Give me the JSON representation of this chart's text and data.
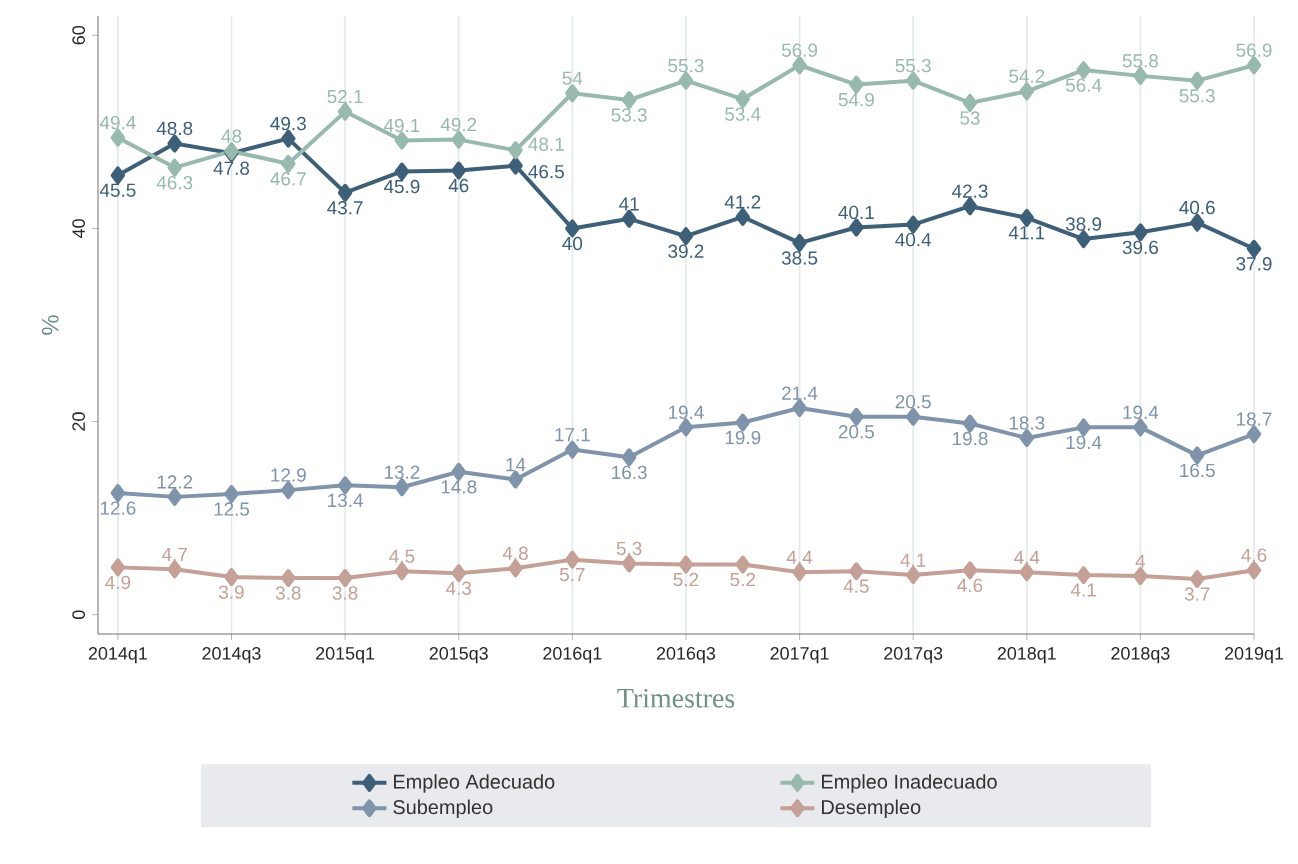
{
  "chart_data": {
    "type": "line",
    "xlabel": "Trimestres",
    "ylabel": "%",
    "categories": [
      "2014q1",
      null,
      "2014q3",
      null,
      "2015q1",
      null,
      "2015q3",
      null,
      "2016q1",
      null,
      "2016q3",
      null,
      "2017q1",
      null,
      "2017q3",
      null,
      "2018q1",
      null,
      "2018q3",
      null,
      "2019q1"
    ],
    "series": [
      {
        "name": "Empleo Adecuado",
        "color": "#3d5f78",
        "values": [
          45.5,
          48.8,
          47.8,
          49.3,
          43.7,
          45.9,
          46,
          46.5,
          40,
          41,
          39.2,
          41.2,
          38.5,
          40.1,
          40.4,
          42.3,
          41.1,
          38.9,
          39.6,
          40.6,
          37.9
        ]
      },
      {
        "name": "Empleo Inadecuado",
        "color": "#98b9ad",
        "values": [
          49.4,
          46.3,
          48,
          46.7,
          52.1,
          49.1,
          49.2,
          48.1,
          54,
          53.3,
          55.3,
          53.4,
          56.9,
          54.9,
          55.3,
          53,
          54.2,
          56.4,
          55.8,
          55.3,
          56.9
        ]
      },
      {
        "name": "Subempleo",
        "color": "#7f93aa",
        "values": [
          12.6,
          12.2,
          12.5,
          12.9,
          13.4,
          13.2,
          14.8,
          14,
          17.1,
          16.3,
          19.4,
          19.9,
          21.4,
          20.5,
          20.5,
          19.8,
          18.3,
          19.4,
          19.4,
          16.5,
          18.7
        ]
      },
      {
        "name": "Desempleo",
        "color": "#c4a097",
        "values": [
          4.9,
          4.7,
          3.9,
          3.8,
          3.8,
          4.5,
          4.3,
          4.8,
          5.7,
          5.3,
          5.2,
          5.2,
          4.4,
          4.5,
          4.1,
          4.6,
          4.4,
          4.1,
          4,
          3.7,
          4.6
        ]
      }
    ],
    "ylim": [
      -2,
      62
    ],
    "yticks": [
      0,
      20,
      40,
      60
    ],
    "grid": "x",
    "legend": "bottom",
    "marker": "diamond",
    "line_style": "solid",
    "data_labels": true
  }
}
